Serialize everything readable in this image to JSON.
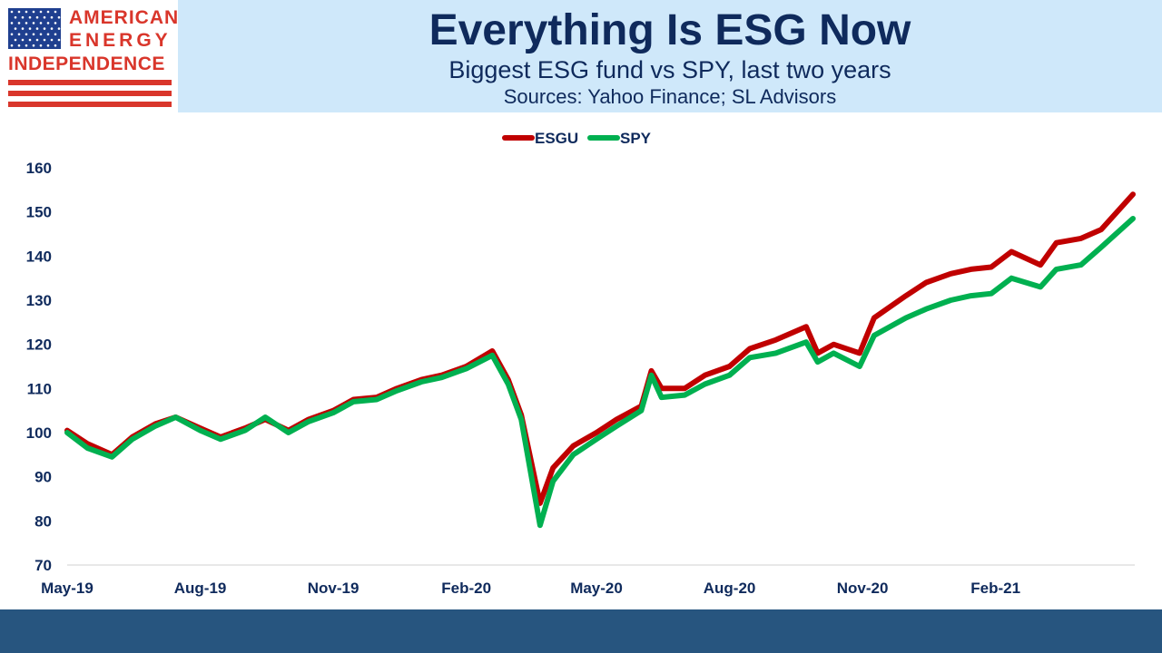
{
  "logo": {
    "line1": "AMERICAN",
    "line2": "ENERGY",
    "line3": "INDEPENDENCE",
    "icon": "us-flag-icon"
  },
  "header": {
    "title": "Everything Is ESG Now",
    "subtitle": "Biggest ESG fund vs SPY, last two years",
    "sources": "Sources: Yahoo Finance; SL Advisors"
  },
  "colors": {
    "header_band": "#cfe8fa",
    "title_text": "#0f2a5c",
    "logo_red": "#d9362b",
    "logo_blue": "#1f3f8f",
    "esgu_line": "#c00000",
    "spy_line": "#00b050",
    "footer_band": "#27557f"
  },
  "chart_data": {
    "type": "line",
    "title": "",
    "xlabel": "",
    "ylabel": "",
    "ylim": [
      70,
      160
    ],
    "yticks": [
      70,
      80,
      90,
      100,
      110,
      120,
      130,
      140,
      150,
      160
    ],
    "xlim": [
      "2019-05-01",
      "2021-05-07"
    ],
    "xticks": [
      "May-19",
      "Aug-19",
      "Nov-19",
      "Feb-20",
      "May-20",
      "Aug-20",
      "Nov-20",
      "Feb-21"
    ],
    "grid": false,
    "legend": "top-center",
    "x": [
      "2019-05-01",
      "2019-05-15",
      "2019-06-01",
      "2019-06-15",
      "2019-07-01",
      "2019-07-15",
      "2019-08-01",
      "2019-08-15",
      "2019-09-01",
      "2019-09-15",
      "2019-10-01",
      "2019-10-15",
      "2019-11-01",
      "2019-11-15",
      "2019-12-01",
      "2019-12-15",
      "2020-01-01",
      "2020-01-15",
      "2020-02-01",
      "2020-02-19",
      "2020-03-01",
      "2020-03-10",
      "2020-03-23",
      "2020-04-01",
      "2020-04-15",
      "2020-05-01",
      "2020-05-15",
      "2020-06-01",
      "2020-06-08",
      "2020-06-15",
      "2020-07-01",
      "2020-07-15",
      "2020-08-01",
      "2020-08-15",
      "2020-09-02",
      "2020-09-23",
      "2020-10-01",
      "2020-10-12",
      "2020-10-30",
      "2020-11-09",
      "2020-12-01",
      "2020-12-15",
      "2021-01-01",
      "2021-01-15",
      "2021-01-29",
      "2021-02-12",
      "2021-03-04",
      "2021-03-15",
      "2021-04-01",
      "2021-04-15",
      "2021-05-07"
    ],
    "series": [
      {
        "name": "ESGU",
        "values": [
          100.5,
          97.5,
          95,
          99,
          102,
          103.5,
          101,
          99,
          101,
          103,
          100.5,
          103,
          105,
          107.5,
          108,
          110,
          112,
          113,
          115,
          118.5,
          112,
          104,
          84,
          92,
          97,
          100,
          103,
          106,
          114,
          110,
          110,
          113,
          115,
          119,
          121,
          124,
          118,
          120,
          118,
          126,
          131,
          134,
          136,
          137,
          137.5,
          141,
          138,
          143,
          144,
          146,
          154
        ]
      },
      {
        "name": "SPY",
        "values": [
          100,
          96.5,
          94.5,
          98.5,
          101.5,
          103.5,
          100.5,
          98.5,
          100.5,
          103.5,
          100,
          102.5,
          104.5,
          107,
          107.5,
          109.5,
          111.5,
          112.5,
          114.5,
          117.5,
          111,
          103,
          79,
          89,
          95,
          98.5,
          101.5,
          105,
          113,
          108,
          108.5,
          111,
          113,
          117,
          118,
          120.5,
          116,
          118,
          115,
          122,
          126,
          128,
          130,
          131,
          131.5,
          135,
          133,
          137,
          138,
          142,
          148.5
        ]
      }
    ]
  }
}
